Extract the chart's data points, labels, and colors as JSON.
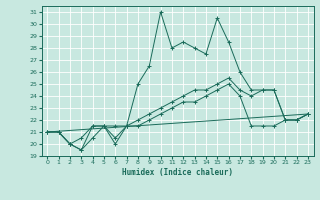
{
  "xlabel": "Humidex (Indice chaleur)",
  "bg_color": "#c8e8e0",
  "grid_color": "#ffffff",
  "line_color": "#1a6b5a",
  "xlim": [
    -0.5,
    23.5
  ],
  "ylim": [
    19,
    31.5
  ],
  "xticks": [
    0,
    1,
    2,
    3,
    4,
    5,
    6,
    7,
    8,
    9,
    10,
    11,
    12,
    13,
    14,
    15,
    16,
    17,
    18,
    19,
    20,
    21,
    22,
    23
  ],
  "yticks": [
    19,
    20,
    21,
    22,
    23,
    24,
    25,
    26,
    27,
    28,
    29,
    30,
    31
  ],
  "series": [
    {
      "x": [
        0,
        1,
        2,
        3,
        4,
        5,
        6,
        7,
        8,
        9,
        10,
        11,
        12,
        13,
        14,
        15,
        16,
        17,
        18,
        19,
        20,
        21,
        22,
        23
      ],
      "y": [
        21,
        21,
        20,
        19.5,
        21.5,
        21.5,
        20,
        21.5,
        25,
        26.5,
        31,
        28,
        28.5,
        28,
        27.5,
        30.5,
        28.5,
        26,
        24.5,
        24.5,
        24.5,
        22,
        22,
        22.5
      ],
      "marker": true
    },
    {
      "x": [
        0,
        1,
        2,
        3,
        4,
        5,
        6,
        7,
        8,
        9,
        10,
        11,
        12,
        13,
        14,
        15,
        16,
        17,
        18,
        19,
        20,
        21,
        22,
        23
      ],
      "y": [
        21,
        21,
        20,
        20.5,
        21.5,
        21.5,
        21.5,
        21.5,
        22,
        22.5,
        23,
        23.5,
        24,
        24.5,
        24.5,
        25,
        25.5,
        24.5,
        24,
        24.5,
        24.5,
        22,
        22,
        22.5
      ],
      "marker": true
    },
    {
      "x": [
        0,
        1,
        2,
        3,
        4,
        5,
        6,
        7,
        8,
        9,
        10,
        11,
        12,
        13,
        14,
        15,
        16,
        17,
        18,
        19,
        20,
        21,
        22,
        23
      ],
      "y": [
        21,
        21,
        20,
        19.5,
        20.5,
        21.5,
        20.5,
        21.5,
        21.5,
        22,
        22.5,
        23,
        23.5,
        23.5,
        24,
        24.5,
        25,
        24.0,
        21.5,
        21.5,
        21.5,
        22,
        22,
        22.5
      ],
      "marker": true
    },
    {
      "x": [
        0,
        23
      ],
      "y": [
        21,
        22.5
      ],
      "marker": false
    }
  ]
}
